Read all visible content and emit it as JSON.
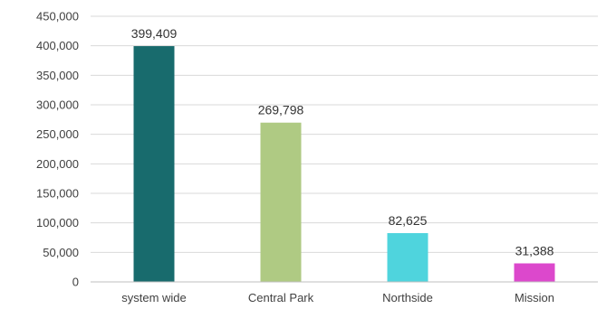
{
  "chart_data": {
    "type": "bar",
    "categories": [
      "system wide",
      "Central Park",
      "Northside",
      "Mission"
    ],
    "values": [
      399409,
      269798,
      82625,
      31388
    ],
    "value_labels": [
      "399,409",
      "269,798",
      "82,625",
      "31,388"
    ],
    "colors": [
      "#186b6d",
      "#afca83",
      "#4fd4dd",
      "#dc48cc"
    ],
    "ylim": [
      0,
      450000
    ],
    "yticks": [
      0,
      50000,
      100000,
      150000,
      200000,
      250000,
      300000,
      350000,
      400000,
      450000
    ],
    "ytick_labels": [
      "0",
      "50,000",
      "100,000",
      "150,000",
      "200,000",
      "250,000",
      "300,000",
      "350,000",
      "400,000",
      "450,000"
    ],
    "grid": true,
    "legend": "none"
  }
}
